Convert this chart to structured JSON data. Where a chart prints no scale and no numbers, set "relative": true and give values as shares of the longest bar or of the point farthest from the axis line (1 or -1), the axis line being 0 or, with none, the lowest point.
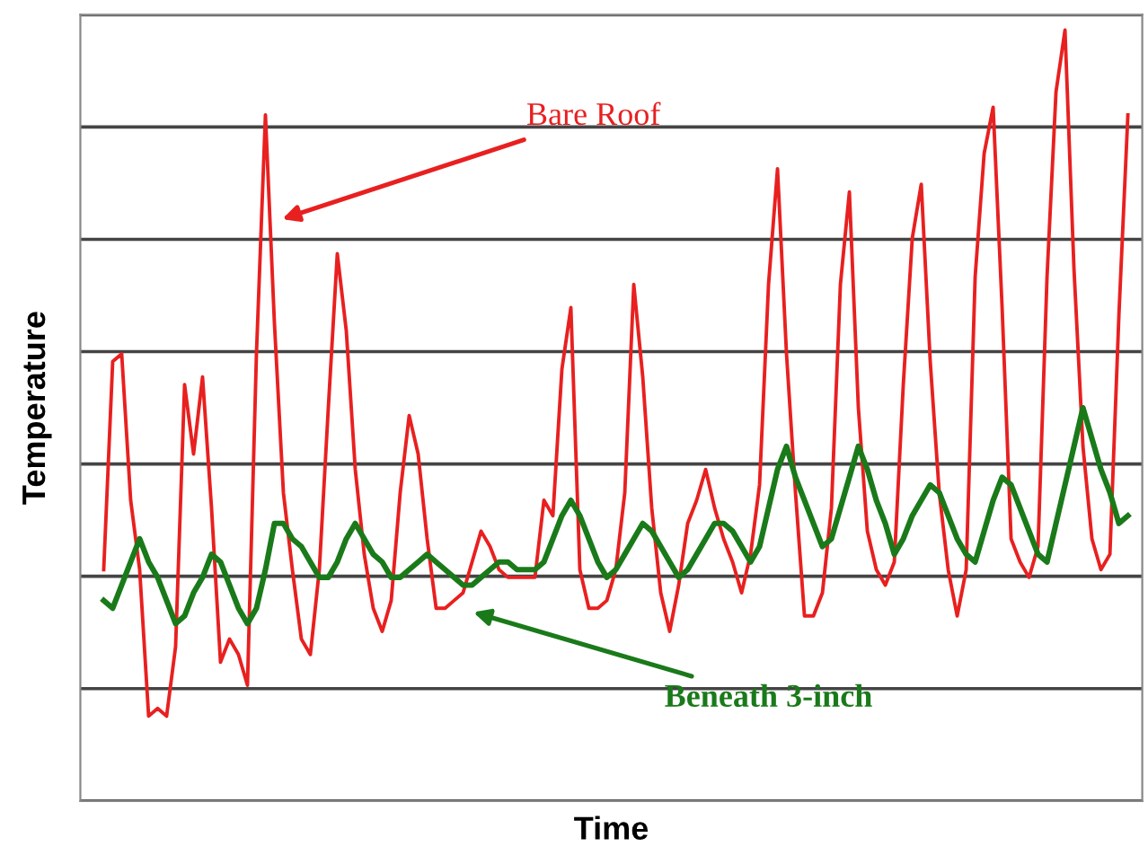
{
  "chart_data": {
    "type": "line",
    "relative": true,
    "xlabel": "Time",
    "ylabel": "Temperature",
    "tick_labels": false,
    "grid": "y",
    "legend": false,
    "marker": "none",
    "line_style": "solid",
    "categories": [
      null,
      null,
      null,
      null,
      null,
      null,
      null,
      null,
      null,
      null,
      null,
      null,
      null,
      null,
      null,
      null,
      null,
      null,
      null,
      null,
      null,
      null,
      null,
      null,
      null,
      null,
      null,
      null,
      null,
      null,
      null,
      null,
      null,
      null,
      null,
      null,
      null,
      null,
      null,
      null,
      null,
      null,
      null,
      null,
      null,
      null,
      null,
      null,
      null,
      null,
      null,
      null,
      null,
      null,
      null,
      null,
      null,
      null,
      null,
      null,
      null,
      null,
      null,
      null,
      null,
      null,
      null,
      null,
      null,
      null,
      null,
      null,
      null,
      null,
      null,
      null,
      null,
      null,
      null,
      null,
      null,
      null,
      null,
      null,
      null,
      null,
      null,
      null,
      null,
      null,
      null,
      null,
      null,
      null,
      null,
      null,
      null,
      null,
      null,
      null,
      null,
      null,
      null,
      null,
      null,
      null,
      null,
      null,
      null,
      null,
      null,
      null,
      null,
      null,
      null
    ],
    "series": [
      {
        "color": "#e82020",
        "values": [
          0.3,
          0.57,
          0.58,
          0.39,
          0.3,
          0.11,
          0.12,
          0.11,
          0.2,
          0.54,
          0.45,
          0.55,
          0.38,
          0.18,
          0.21,
          0.19,
          0.15,
          0.58,
          0.89,
          0.62,
          0.4,
          0.3,
          0.21,
          0.19,
          0.3,
          0.51,
          0.71,
          0.61,
          0.43,
          0.32,
          0.25,
          0.22,
          0.26,
          0.4,
          0.5,
          0.45,
          0.34,
          0.25,
          0.25,
          0.26,
          0.27,
          0.31,
          0.35,
          0.33,
          0.3,
          0.29,
          0.29,
          0.29,
          0.29,
          0.39,
          0.37,
          0.56,
          0.64,
          0.3,
          0.25,
          0.25,
          0.26,
          0.3,
          0.4,
          0.67,
          0.55,
          0.38,
          0.27,
          0.22,
          0.28,
          0.36,
          0.39,
          0.43,
          0.38,
          0.34,
          0.31,
          0.27,
          0.32,
          0.41,
          0.67,
          0.82,
          0.58,
          0.4,
          0.24,
          0.24,
          0.27,
          0.38,
          0.67,
          0.79,
          0.51,
          0.35,
          0.3,
          0.28,
          0.31,
          0.54,
          0.73,
          0.8,
          0.57,
          0.4,
          0.3,
          0.24,
          0.3,
          0.68,
          0.84,
          0.9,
          0.64,
          0.34,
          0.31,
          0.29,
          0.33,
          0.68,
          0.92,
          1.0,
          0.69,
          0.46,
          0.34,
          0.3,
          0.32,
          0.63,
          0.89
        ]
      },
      {
        "color": "#1a7a1a",
        "values": [
          0.26,
          0.25,
          0.28,
          0.31,
          0.34,
          0.31,
          0.29,
          0.26,
          0.23,
          0.24,
          0.27,
          0.29,
          0.32,
          0.31,
          0.28,
          0.25,
          0.23,
          0.25,
          0.3,
          0.36,
          0.36,
          0.34,
          0.33,
          0.31,
          0.29,
          0.29,
          0.31,
          0.34,
          0.36,
          0.34,
          0.32,
          0.31,
          0.29,
          0.29,
          0.3,
          0.31,
          0.32,
          0.31,
          0.3,
          0.29,
          0.28,
          0.28,
          0.29,
          0.3,
          0.31,
          0.31,
          0.3,
          0.3,
          0.3,
          0.31,
          0.34,
          0.37,
          0.39,
          0.37,
          0.34,
          0.31,
          0.29,
          0.3,
          0.32,
          0.34,
          0.36,
          0.35,
          0.33,
          0.31,
          0.29,
          0.3,
          0.32,
          0.34,
          0.36,
          0.36,
          0.35,
          0.33,
          0.31,
          0.33,
          0.38,
          0.43,
          0.46,
          0.42,
          0.39,
          0.36,
          0.33,
          0.34,
          0.38,
          0.42,
          0.46,
          0.43,
          0.39,
          0.36,
          0.32,
          0.34,
          0.37,
          0.39,
          0.41,
          0.4,
          0.37,
          0.34,
          0.32,
          0.31,
          0.35,
          0.39,
          0.42,
          0.41,
          0.38,
          0.35,
          0.32,
          0.31,
          0.36,
          0.41,
          0.46,
          0.51,
          0.47,
          0.43,
          0.4,
          0.36,
          0.37
        ]
      }
    ],
    "annotations": [
      "Bare Roof",
      "Beneath 3-inch"
    ]
  }
}
